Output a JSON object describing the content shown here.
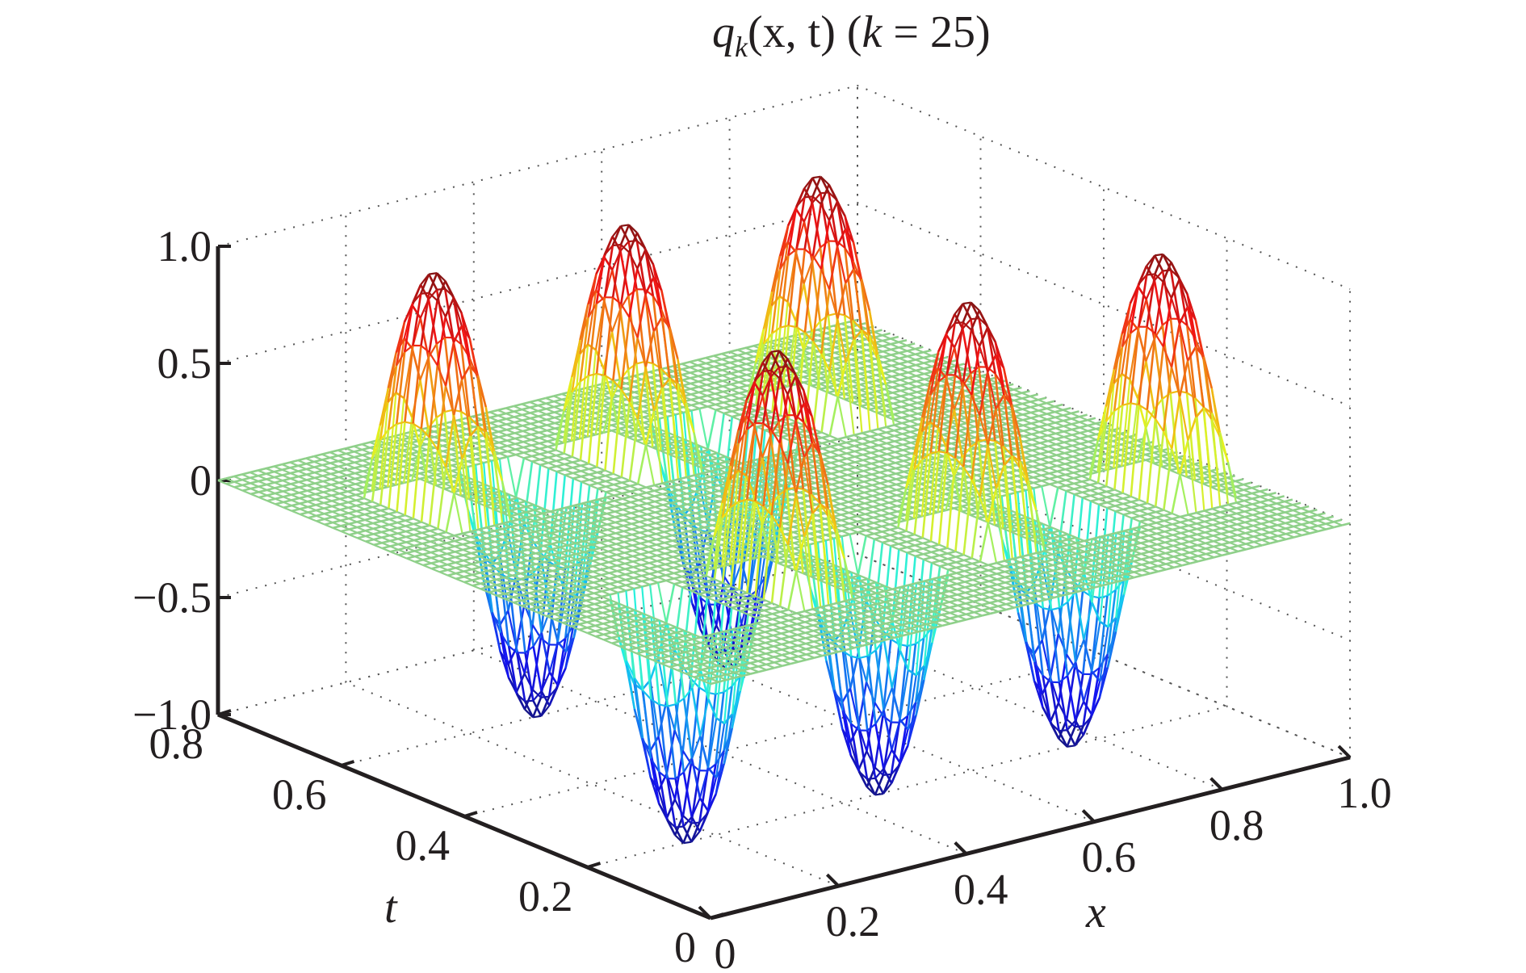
{
  "chart_data": {
    "type": "surface",
    "title": {
      "func": "q",
      "sub": "k",
      "args": "(x, t) (",
      "k_var": "k",
      "k_eq": " = 25)"
    },
    "xlabel": "x",
    "ylabel": "t",
    "zlabel": "",
    "xlim": [
      0,
      1.0
    ],
    "ylim": [
      0,
      0.8
    ],
    "zlim": [
      -1.0,
      1.0
    ],
    "xticks": [
      "0",
      "0.2",
      "0.4",
      "0.6",
      "0.8",
      "1.0"
    ],
    "yticks": [
      "0",
      "0.2",
      "0.4",
      "0.6",
      "0.8"
    ],
    "zticks": [
      "−1.0",
      "−0.5",
      "0",
      "0.5",
      "1.0"
    ],
    "grid": true,
    "colormap": "jet",
    "mesh_base_color": "#8fd08a",
    "k": 25,
    "t_bands": [
      {
        "t_center": 0.2,
        "x_peaks": [
          0.3,
          0.6,
          0.9
        ],
        "x_troughs": [
          0.15,
          0.45,
          0.75
        ]
      },
      {
        "t_center": 0.6,
        "x_peaks": [
          0.15,
          0.45,
          0.75
        ],
        "x_troughs": [
          0.3,
          0.6
        ]
      }
    ],
    "peak_value": 1.0,
    "trough_value": -1.0
  }
}
